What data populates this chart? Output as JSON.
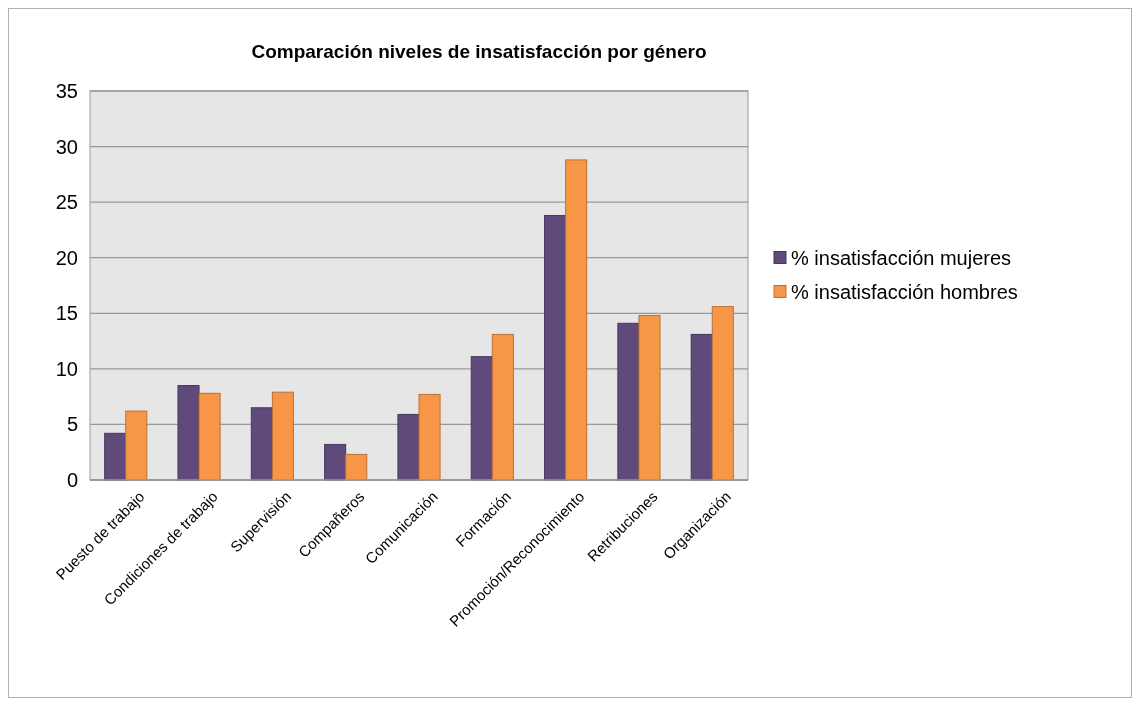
{
  "chart_data": {
    "type": "bar",
    "title": "Comparación niveles de insatisfacción por género",
    "categories": [
      "Puesto de trabajo",
      "Condiciones de trabajo",
      "Supervisión",
      "Compañeros",
      "Comunicación",
      "Formación",
      "Promoción/Reconocimiento",
      "Retribuciones",
      "Organización"
    ],
    "series": [
      {
        "name": "% insatisfacción mujeres",
        "color": "#604a7b",
        "values": [
          4.2,
          8.5,
          6.5,
          3.2,
          5.9,
          11.1,
          23.8,
          14.1,
          13.1
        ]
      },
      {
        "name": "% insatisfacción hombres",
        "color": "#f79646",
        "values": [
          6.2,
          7.8,
          7.9,
          2.3,
          7.7,
          13.1,
          28.8,
          14.8,
          15.6
        ]
      }
    ],
    "ylim": [
      0,
      35
    ],
    "yticks": [
      0,
      5,
      10,
      15,
      20,
      25,
      30,
      35
    ],
    "grid": "y",
    "legend": "right"
  }
}
